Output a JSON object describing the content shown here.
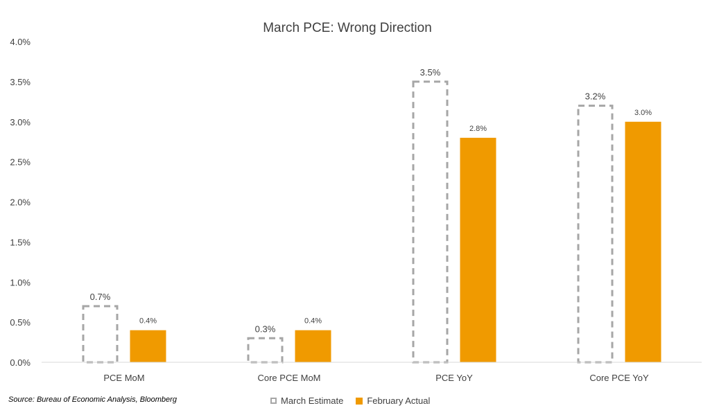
{
  "source_note": "Source: Bureau of Economic Analysis, Bloomberg",
  "colors": {
    "estimate_stroke": "#a6a6a6",
    "actual_fill": "#f09a00",
    "axis": "#d9d9d9",
    "text": "#404040"
  },
  "chart_data": {
    "type": "bar",
    "title": "March PCE: Wrong Direction",
    "xlabel": "",
    "ylabel": "",
    "categories": [
      "PCE MoM",
      "Core PCE MoM",
      "PCE YoY",
      "Core PCE YoY"
    ],
    "series": [
      {
        "name": "March Estimate",
        "values": [
          0.7,
          0.3,
          3.5,
          3.2
        ],
        "labels": [
          "0.7%",
          "0.3%",
          "3.5%",
          "3.2%"
        ],
        "style": "dashed-outline"
      },
      {
        "name": "February Actual",
        "values": [
          0.4,
          0.4,
          2.8,
          3.0
        ],
        "labels": [
          "0.4%",
          "0.4%",
          "2.8%",
          "3.0%"
        ],
        "style": "solid"
      }
    ],
    "ylim": [
      0,
      4.0
    ],
    "yticks": [
      "0.0%",
      "0.5%",
      "1.0%",
      "1.5%",
      "2.0%",
      "2.5%",
      "3.0%",
      "3.5%",
      "4.0%"
    ],
    "grid": false,
    "legend": "bottom"
  }
}
